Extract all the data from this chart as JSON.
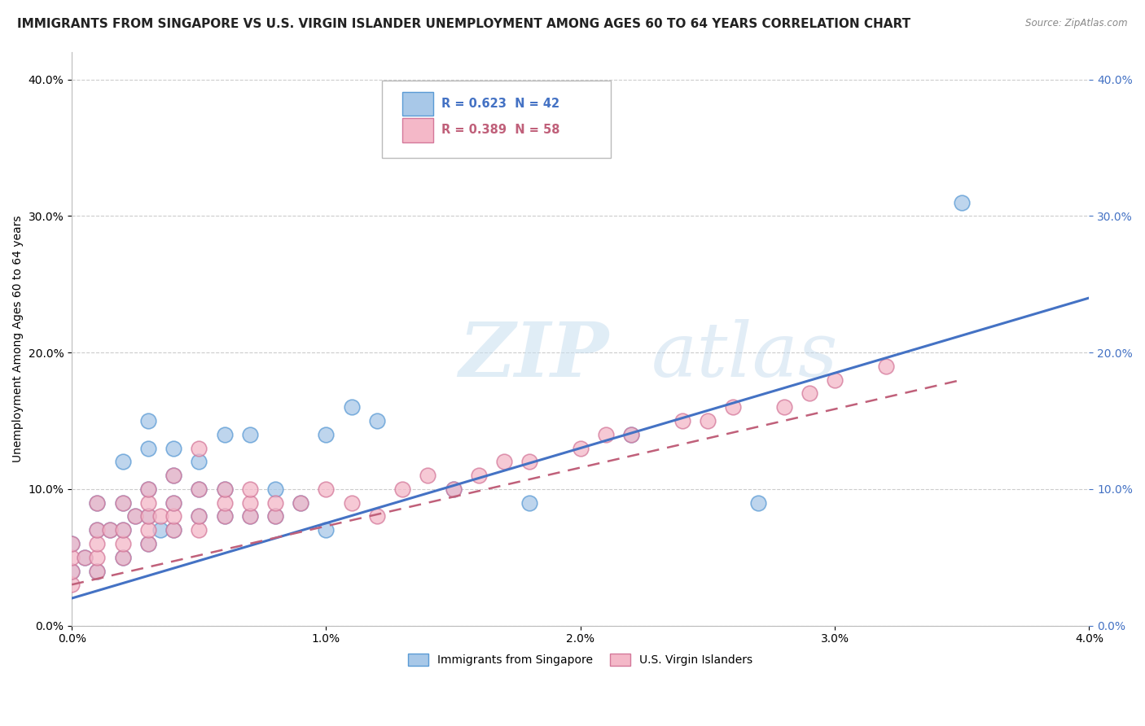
{
  "title": "IMMIGRANTS FROM SINGAPORE VS U.S. VIRGIN ISLANDER UNEMPLOYMENT AMONG AGES 60 TO 64 YEARS CORRELATION CHART",
  "source": "Source: ZipAtlas.com",
  "ylabel": "Unemployment Among Ages 60 to 64 years",
  "xlim": [
    0.0,
    0.04
  ],
  "ylim": [
    0.0,
    0.42
  ],
  "xticks": [
    0.0,
    0.01,
    0.02,
    0.03,
    0.04
  ],
  "xtick_labels": [
    "0.0%",
    "1.0%",
    "2.0%",
    "3.0%",
    "4.0%"
  ],
  "yticks": [
    0.0,
    0.1,
    0.2,
    0.3,
    0.4
  ],
  "ytick_labels": [
    "0.0%",
    "10.0%",
    "20.0%",
    "30.0%",
    "40.0%"
  ],
  "watermark_zip": "ZIP",
  "watermark_atlas": "atlas",
  "legend_text1": "R = 0.623  N = 42",
  "legend_text2": "R = 0.389  N = 58",
  "color_blue_fill": "#a8c8e8",
  "color_blue_edge": "#5b9bd5",
  "color_pink_fill": "#f4b8c8",
  "color_pink_edge": "#d4789a",
  "color_blue_line": "#4472c4",
  "color_pink_line": "#c0607a",
  "singapore_x": [
    0.0,
    0.0,
    0.0005,
    0.001,
    0.001,
    0.001,
    0.0015,
    0.002,
    0.002,
    0.002,
    0.002,
    0.0025,
    0.003,
    0.003,
    0.003,
    0.003,
    0.003,
    0.0035,
    0.004,
    0.004,
    0.004,
    0.004,
    0.005,
    0.005,
    0.005,
    0.006,
    0.006,
    0.006,
    0.007,
    0.007,
    0.008,
    0.008,
    0.009,
    0.01,
    0.01,
    0.011,
    0.012,
    0.015,
    0.018,
    0.022,
    0.027,
    0.035
  ],
  "singapore_y": [
    0.04,
    0.06,
    0.05,
    0.04,
    0.07,
    0.09,
    0.07,
    0.05,
    0.07,
    0.09,
    0.12,
    0.08,
    0.06,
    0.08,
    0.1,
    0.13,
    0.15,
    0.07,
    0.07,
    0.09,
    0.11,
    0.13,
    0.08,
    0.1,
    0.12,
    0.08,
    0.1,
    0.14,
    0.08,
    0.14,
    0.08,
    0.1,
    0.09,
    0.07,
    0.14,
    0.16,
    0.15,
    0.1,
    0.09,
    0.14,
    0.09,
    0.31
  ],
  "virgin_x": [
    0.0,
    0.0,
    0.0,
    0.0,
    0.0005,
    0.001,
    0.001,
    0.001,
    0.001,
    0.001,
    0.0015,
    0.002,
    0.002,
    0.002,
    0.002,
    0.0025,
    0.003,
    0.003,
    0.003,
    0.003,
    0.003,
    0.0035,
    0.004,
    0.004,
    0.004,
    0.004,
    0.005,
    0.005,
    0.005,
    0.005,
    0.006,
    0.006,
    0.006,
    0.007,
    0.007,
    0.007,
    0.008,
    0.008,
    0.009,
    0.01,
    0.011,
    0.012,
    0.013,
    0.014,
    0.015,
    0.016,
    0.017,
    0.018,
    0.02,
    0.021,
    0.022,
    0.024,
    0.025,
    0.026,
    0.028,
    0.029,
    0.03,
    0.032
  ],
  "virgin_y": [
    0.03,
    0.04,
    0.05,
    0.06,
    0.05,
    0.04,
    0.05,
    0.06,
    0.07,
    0.09,
    0.07,
    0.05,
    0.06,
    0.07,
    0.09,
    0.08,
    0.06,
    0.07,
    0.08,
    0.09,
    0.1,
    0.08,
    0.07,
    0.08,
    0.09,
    0.11,
    0.07,
    0.08,
    0.1,
    0.13,
    0.08,
    0.09,
    0.1,
    0.08,
    0.09,
    0.1,
    0.08,
    0.09,
    0.09,
    0.1,
    0.09,
    0.08,
    0.1,
    0.11,
    0.1,
    0.11,
    0.12,
    0.12,
    0.13,
    0.14,
    0.14,
    0.15,
    0.15,
    0.16,
    0.16,
    0.17,
    0.18,
    0.19
  ],
  "singapore_trend": [
    0.02,
    0.24
  ],
  "virgin_trend": [
    0.03,
    0.18
  ],
  "virgin_trend_xend": 0.035,
  "bg_color": "#ffffff",
  "grid_color": "#cccccc",
  "title_fontsize": 11,
  "axis_fontsize": 10,
  "tick_fontsize": 10
}
